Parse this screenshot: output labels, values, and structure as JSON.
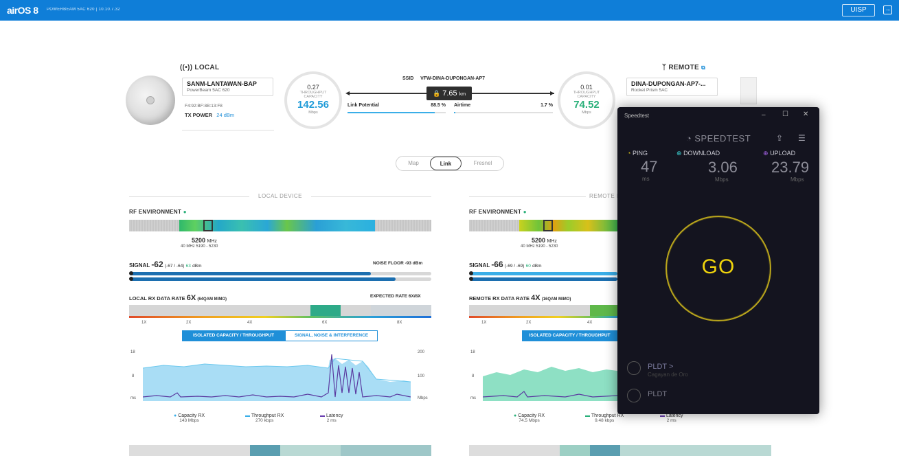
{
  "topbar": {
    "logo": "airOS 8",
    "device_info": "POWERBEAM 5AC 620 | 10.10.7.32",
    "uisp_label": "UISP",
    "exit_icon": "logout-icon"
  },
  "local": {
    "heading": "LOCAL",
    "name": "SANM-LANTAWAN-BAP",
    "model": "PowerBeam 5AC 620",
    "mac": "F4:92:BF:8B:13:F8",
    "tx_power_label": "TX POWER",
    "tx_power_value": "24 dBm",
    "throughput": "0.27",
    "capacity_label": "THROUGHPUT\nCAPACITY",
    "capacity": "142.56",
    "unit": "Mbps"
  },
  "link": {
    "ssid_label": "SSID",
    "ssid": "VFW-DINA-DUPONGAN-AP7",
    "distance": "7.65",
    "distance_unit": "km",
    "potential_label": "Link Potential",
    "potential_value": "88.5 %",
    "potential_frac": 0.885,
    "airtime_label": "Airtime",
    "airtime_value": "1.7 %",
    "airtime_frac": 0.017
  },
  "remote": {
    "heading": "REMOTE",
    "name": "DINA-DUPONGAN-AP7-...",
    "model": "Rocket Prism 5AC",
    "throughput": "0.01",
    "capacity_label": "THROUGHPUT\nCAPACITY",
    "capacity": "74.52",
    "unit": "Mbps"
  },
  "tabs": [
    "Map",
    "Link",
    "Fresnel"
  ],
  "local_device": {
    "section": "LOCAL DEVICE",
    "rf_label": "RF ENVIRONMENT",
    "freq": "5200",
    "freq_unit": "MHz",
    "freq_range": "40 MHz 5190 - 5230",
    "signal_label": "SIGNAL",
    "signal_value": "-62",
    "signal_detail": "(-67 / -64)",
    "signal_detail2": "63",
    "signal_unit": "dBm",
    "noise_label": "NOISE FLOOR",
    "noise_value": "-93 dBm",
    "rate_label": "LOCAL RX DATA RATE",
    "rate_value": "6X",
    "rate_mod": "(64QAM MIMO)",
    "expected_label": "EXPECTED RATE",
    "expected_value": "6X/8X",
    "rate_ticks": [
      "1X",
      "2X",
      "4X",
      "6X",
      "8X"
    ],
    "toggle_left": "ISOLATED CAPACITY / THROUGHPUT",
    "toggle_right": "SIGNAL, NOISE & INTERFERENCE",
    "y_left": [
      "18",
      "8",
      "ms"
    ],
    "y_right": [
      "200",
      "100",
      "Mbps"
    ],
    "legend": [
      {
        "name": "Capacity RX",
        "value": "143 Mbps",
        "color": "#3aaee8"
      },
      {
        "name": "Throughput RX",
        "value": "270 kbps",
        "color": "#3aaee8"
      },
      {
        "name": "Latency",
        "value": "2 ms",
        "color": "#6a3fb0"
      }
    ]
  },
  "remote_device": {
    "section": "REMOTE DEVICE",
    "rf_label": "RF ENVIRONMENT",
    "freq": "5200",
    "freq_unit": "MHz",
    "freq_range": "40 MHz 5190 - 5230",
    "signal_label": "SIGNAL",
    "signal_value": "-66",
    "signal_detail": "(-69 / -69)",
    "signal_detail2": "60",
    "signal_unit": "dBm",
    "rate_label": "REMOTE RX DATA RATE",
    "rate_value": "4X",
    "rate_mod": "(16QAM MIMO)",
    "rate_ticks": [
      "1X",
      "2X",
      "4X",
      "6X"
    ],
    "toggle_left": "ISOLATED CAPACITY / THROUGHPUT",
    "y_left": [
      "18",
      "8",
      "ms"
    ],
    "legend": [
      {
        "name": "Capacity RX",
        "value": "74.5 Mbps",
        "color": "#2ab07a"
      },
      {
        "name": "Throughput RX",
        "value": "9.48 kbps",
        "color": "#2ab07a"
      },
      {
        "name": "Latency",
        "value": "2 ms",
        "color": "#6a3fb0"
      }
    ]
  },
  "speedtest": {
    "window_title": "Speedtest",
    "brand": "SPEEDTEST",
    "ping_label": "PING",
    "ping_value": "47",
    "ping_unit": "ms",
    "download_label": "DOWNLOAD",
    "download_value": "3.06",
    "download_unit": "Mbps",
    "upload_label": "UPLOAD",
    "upload_value": "23.79",
    "upload_unit": "Mbps",
    "go_label": "GO",
    "isp_name": "PLDT >",
    "isp_location": "Cagayan de Oro",
    "server_name": "PLDT"
  }
}
